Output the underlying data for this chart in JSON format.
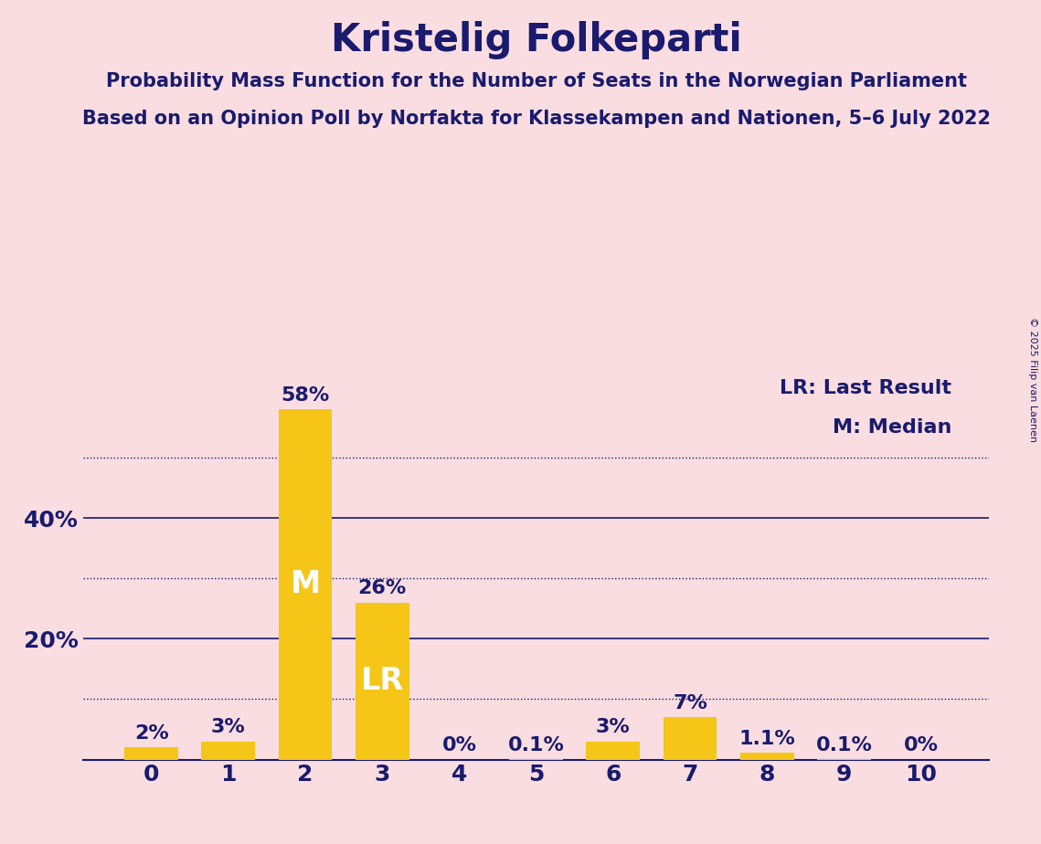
{
  "title": "Kristelig Folkeparti",
  "subtitle1": "Probability Mass Function for the Number of Seats in the Norwegian Parliament",
  "subtitle2": "Based on an Opinion Poll by Norfakta for Klassekampen and Nationen, 5–6 July 2022",
  "copyright": "© 2025 Filip van Laenen",
  "categories": [
    0,
    1,
    2,
    3,
    4,
    5,
    6,
    7,
    8,
    9,
    10
  ],
  "values": [
    2,
    3,
    58,
    26,
    0,
    0.1,
    3,
    7,
    1.1,
    0.1,
    0
  ],
  "labels": [
    "2%",
    "3%",
    "58%",
    "26%",
    "0%",
    "0.1%",
    "3%",
    "7%",
    "1.1%",
    "0.1%",
    "0%"
  ],
  "bar_color": "#F5C518",
  "background_color": "#F9DDE0",
  "text_color": "#1a1a6e",
  "axis_color": "#1a1a6e",
  "median_bar": 2,
  "lr_bar": 3,
  "median_label": "M",
  "lr_label": "LR",
  "legend_lr": "LR: Last Result",
  "legend_m": "M: Median",
  "ylim": [
    0,
    65
  ],
  "yticks": [
    0,
    20,
    40
  ],
  "dotted_yticks": [
    10,
    30,
    50
  ],
  "title_fontsize": 30,
  "subtitle_fontsize": 15,
  "tick_fontsize": 18,
  "legend_fontsize": 16,
  "bar_label_fontsize": 16,
  "inner_label_fontsize": 24,
  "copyright_fontsize": 8
}
